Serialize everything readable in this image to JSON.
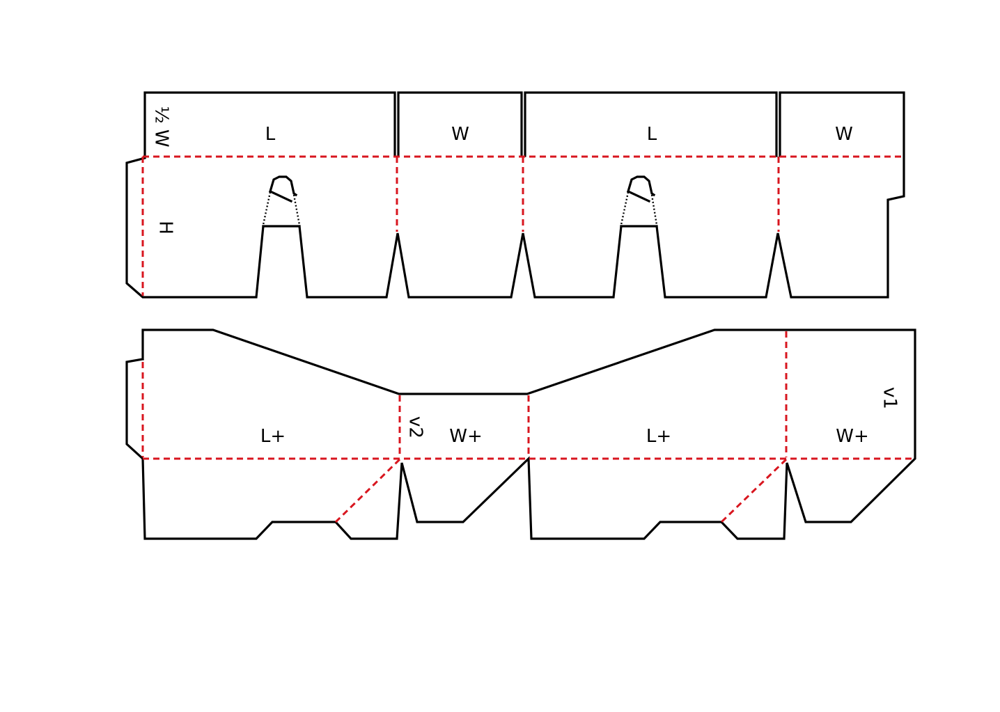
{
  "top_panel": {
    "labels": {
      "half_w": "½ W",
      "l_1": "L",
      "w_1": "W",
      "l_2": "L",
      "w_2": "W",
      "h": "H"
    }
  },
  "bottom_panel": {
    "labels": {
      "lplus_1": "L+",
      "v2": "v2",
      "wplus_1": "W+",
      "lplus_2": "L+",
      "wplus_2": "W+",
      "v1": "v1"
    }
  },
  "colors": {
    "cut_line": "#000000",
    "fold_line": "#d8161f",
    "background": "#ffffff"
  }
}
